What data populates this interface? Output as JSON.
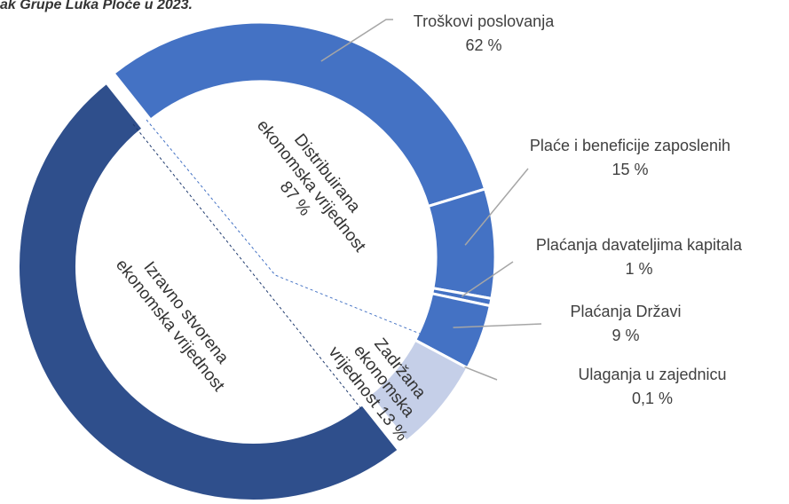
{
  "chart_data": {
    "type": "donut",
    "title": "ak Grupe Luka Ploče u 2023.",
    "source": {
      "name_lines": [
        "Izravno stvorena",
        "ekonomska vrijednost"
      ],
      "color": "#2f4f8c"
    },
    "groups": [
      {
        "name_lines": [
          "Distribuirana",
          "ekonomska vrijednost"
        ],
        "value": 87,
        "value_label": "87 %",
        "color": "#4472c4"
      },
      {
        "name_lines": [
          "Zadržana",
          "ekonomska",
          "vrijednost"
        ],
        "value": 13,
        "value_label": "13 %",
        "color": "#c5cfe8"
      }
    ],
    "categories": [
      "Troškovi poslovanja",
      "Plaće i beneficije zaposlenih",
      "Plaćanja davateljima kapitala",
      "Plaćanja Državi",
      "Ulaganja u zajednicu"
    ],
    "values": [
      62,
      15,
      1,
      9,
      0.1
    ],
    "value_labels": [
      "62 %",
      "15 %",
      "1 %",
      "9 %",
      "0,1 %"
    ],
    "color": "#4472c4"
  }
}
